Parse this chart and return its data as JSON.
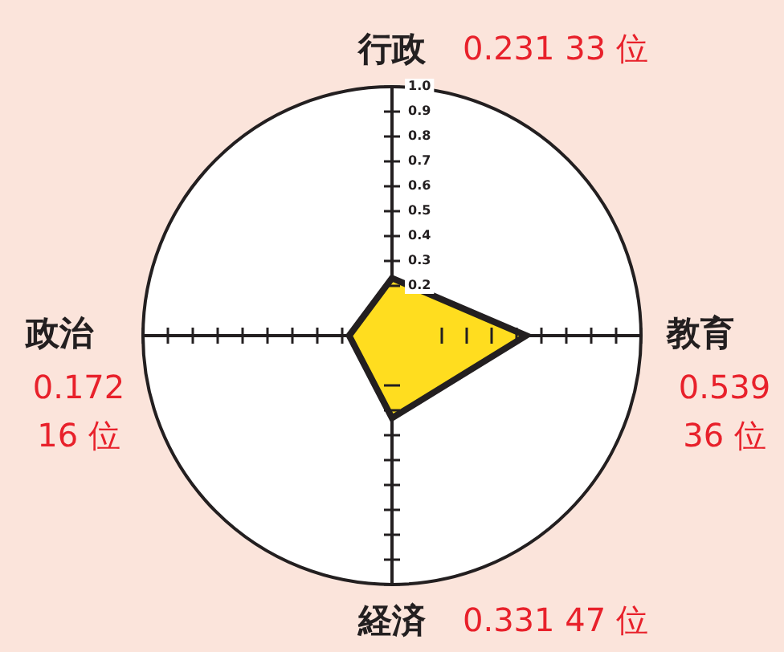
{
  "chart_data": {
    "type": "radar",
    "categories": [
      "行政",
      "教育",
      "経済",
      "政治"
    ],
    "series": [
      {
        "color": "#ffdd1f",
        "values": [
          0.231,
          0.539,
          0.331,
          0.172
        ]
      }
    ],
    "value_labels": [
      "0.231 33 位",
      "0.539 36 位",
      "0.331 47 位",
      "0.172 16 位"
    ],
    "ylim": [
      0,
      1
    ],
    "yticks": [
      0.2,
      0.3,
      0.4,
      0.5,
      0.6,
      0.7,
      0.8,
      0.9,
      {
        "value": 1,
        "label": "1.0"
      }
    ],
    "grid": false
  }
}
